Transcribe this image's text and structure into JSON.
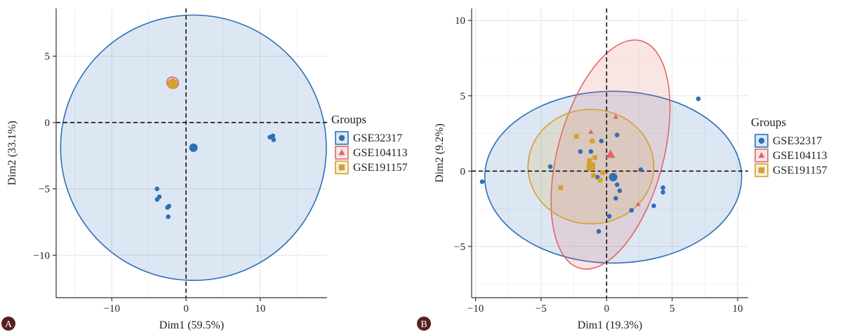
{
  "chart_data": [
    {
      "panel_label": "A",
      "type": "scatter",
      "subtype": "pca-individuals-with-concentration-ellipses",
      "xlabel": "Dim1 (59.5%)",
      "ylabel": "Dim2 (33.1%)",
      "xlim": [
        -17.5,
        19
      ],
      "ylim": [
        -13.2,
        8.6
      ],
      "xticks": [
        -10,
        0,
        10
      ],
      "yticks": [
        -10,
        -5,
        0,
        5
      ],
      "grid": true,
      "legend_title": "Groups",
      "legend_position": "right",
      "series": [
        {
          "name": "GSE32317",
          "color": "#2e6fb7",
          "marker": "circle",
          "points": [
            [
              -3.9,
              -5.0
            ],
            [
              -3.6,
              -5.6
            ],
            [
              -3.9,
              -5.8
            ],
            [
              -2.3,
              -6.3
            ],
            [
              -2.5,
              -6.4
            ],
            [
              -2.4,
              -7.1
            ],
            [
              11.3,
              -1.1
            ],
            [
              11.7,
              -1.0
            ],
            [
              11.8,
              -1.3
            ],
            [
              -2.1,
              2.8
            ]
          ],
          "centroid": [
            1.0,
            -1.9
          ],
          "ellipse": {
            "cx": 1.0,
            "cy": -1.9,
            "rx": 17.9,
            "ry": 10.0,
            "angle": 22
          }
        },
        {
          "name": "GSE104113",
          "color": "#e06666",
          "marker": "triangle",
          "points": [
            [
              -1.9,
              2.9
            ],
            [
              -1.7,
              3.1
            ]
          ],
          "centroid": [
            -1.8,
            3.0
          ],
          "ellipse": {
            "cx": -1.8,
            "cy": 3.0,
            "rx": 0.75,
            "ry": 0.45,
            "angle": 55
          }
        },
        {
          "name": "GSE191157",
          "color": "#d4a02e",
          "marker": "square",
          "points": [
            [
              -1.9,
              3.0
            ],
            [
              -1.8,
              2.8
            ],
            [
              -1.6,
              2.9
            ]
          ],
          "centroid": [
            -1.8,
            2.9
          ],
          "ellipse": {
            "cx": -1.8,
            "cy": 2.9,
            "rx": 0.6,
            "ry": 0.35,
            "angle": 55
          }
        }
      ]
    },
    {
      "panel_label": "B",
      "type": "scatter",
      "subtype": "pca-individuals-with-concentration-ellipses",
      "xlabel": "Dim1 (19.3%)",
      "ylabel": "Dim2 (9.2%)",
      "xlim": [
        -10.3,
        10.8
      ],
      "ylim": [
        -8.4,
        10.8
      ],
      "xticks": [
        -10,
        -5,
        0,
        5,
        10
      ],
      "yticks": [
        -5,
        0,
        5,
        10
      ],
      "grid": true,
      "legend_title": "Groups",
      "legend_position": "right",
      "series": [
        {
          "name": "GSE32317",
          "color": "#2e6fb7",
          "marker": "circle",
          "points": [
            [
              -9.5,
              -0.7
            ],
            [
              7.0,
              4.8
            ],
            [
              -4.3,
              0.3
            ],
            [
              -2.0,
              1.3
            ],
            [
              -1.2,
              1.3
            ],
            [
              -0.4,
              2.0
            ],
            [
              0.8,
              2.4
            ],
            [
              2.6,
              0.1
            ],
            [
              0.5,
              -0.4
            ],
            [
              0.8,
              -0.9
            ],
            [
              1.0,
              -1.3
            ],
            [
              0.7,
              -1.8
            ],
            [
              1.9,
              -2.6
            ],
            [
              3.6,
              -2.3
            ],
            [
              4.3,
              -1.1
            ],
            [
              4.3,
              -1.4
            ],
            [
              0.2,
              -3.0
            ],
            [
              -0.6,
              -4.0
            ],
            [
              -0.7,
              -0.4
            ]
          ],
          "centroid": [
            0.5,
            -0.4
          ],
          "ellipse": {
            "cx": 0.5,
            "cy": -0.4,
            "rx": 9.8,
            "ry": 5.7,
            "angle": 0
          }
        },
        {
          "name": "GSE104113",
          "color": "#e06666",
          "marker": "triangle",
          "points": [
            [
              -1.2,
              2.6
            ],
            [
              0.7,
              3.6
            ],
            [
              2.4,
              -2.2
            ]
          ],
          "centroid": [
            0.3,
            1.1
          ],
          "ellipse": {
            "cx": 0.3,
            "cy": 1.1,
            "rx": 9.0,
            "ry": 3.5,
            "angle": 75
          }
        },
        {
          "name": "GSE191157",
          "color": "#d4a02e",
          "marker": "square",
          "points": [
            [
              -2.3,
              2.3
            ],
            [
              -1.1,
              2.0
            ],
            [
              -0.9,
              0.9
            ],
            [
              -1.3,
              0.7
            ],
            [
              -0.3,
              -0.1
            ],
            [
              -0.5,
              -0.6
            ],
            [
              -1.0,
              -0.3
            ],
            [
              -3.5,
              -1.1
            ]
          ],
          "centroid": [
            -1.2,
            0.3
          ],
          "ellipse": {
            "cx": -1.2,
            "cy": 0.3,
            "rx": 4.8,
            "ry": 3.8,
            "angle": 0
          }
        }
      ]
    }
  ]
}
